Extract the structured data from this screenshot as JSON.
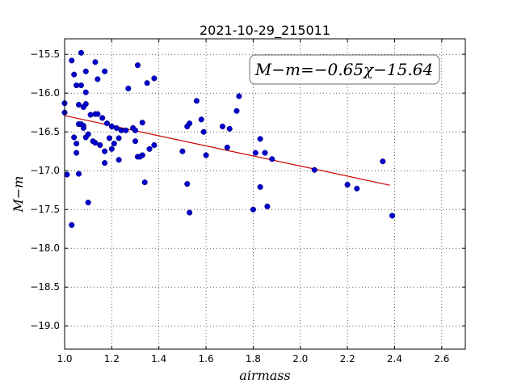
{
  "chart_data": {
    "type": "scatter",
    "title": "2021-10-29_215011",
    "xlabel": "airmass",
    "ylabel": "M−m",
    "xlim": [
      1.0,
      2.7
    ],
    "ylim": [
      -19.3,
      -15.3
    ],
    "invert_y": true,
    "grid": true,
    "grid_style": "dotted",
    "x_ticks": [
      1.0,
      1.2,
      1.4,
      1.6,
      1.8,
      2.0,
      2.2,
      2.4,
      2.6
    ],
    "x_tick_labels": [
      "1.0",
      "1.2",
      "1.4",
      "1.6",
      "1.8",
      "2.0",
      "2.2",
      "2.4",
      "2.6"
    ],
    "y_ticks": [
      -15.5,
      -16.0,
      -16.5,
      -17.0,
      -17.5,
      -18.0,
      -18.5,
      -19.0
    ],
    "y_tick_labels": [
      "−15.5",
      "−16.0",
      "−16.5",
      "−17.0",
      "−17.5",
      "−18.0",
      "−18.5",
      "−19.0"
    ],
    "annotation": "M−m=−0.65χ−15.64",
    "annotation_placement": "top-right",
    "point_color": "#0000cc",
    "line_color": "#cc0000",
    "fit": {
      "slope": -0.65,
      "intercept": -15.64,
      "x_range": [
        1.0,
        2.38
      ]
    },
    "points": [
      [
        1.0,
        -16.13
      ],
      [
        1.0,
        -16.25
      ],
      [
        1.01,
        -17.05
      ],
      [
        1.03,
        -17.7
      ],
      [
        1.03,
        -15.58
      ],
      [
        1.04,
        -15.76
      ],
      [
        1.04,
        -16.57
      ],
      [
        1.05,
        -16.65
      ],
      [
        1.05,
        -15.9
      ],
      [
        1.05,
        -16.77
      ],
      [
        1.06,
        -16.4
      ],
      [
        1.06,
        -16.15
      ],
      [
        1.06,
        -17.04
      ],
      [
        1.07,
        -15.48
      ],
      [
        1.07,
        -15.9
      ],
      [
        1.07,
        -16.4
      ],
      [
        1.08,
        -16.42
      ],
      [
        1.08,
        -16.45
      ],
      [
        1.08,
        -16.18
      ],
      [
        1.09,
        -15.72
      ],
      [
        1.09,
        -15.99
      ],
      [
        1.09,
        -16.57
      ],
      [
        1.09,
        -16.14
      ],
      [
        1.1,
        -17.41
      ],
      [
        1.1,
        -16.53
      ],
      [
        1.11,
        -16.28
      ],
      [
        1.12,
        -16.62
      ],
      [
        1.13,
        -15.6
      ],
      [
        1.13,
        -16.27
      ],
      [
        1.13,
        -16.64
      ],
      [
        1.14,
        -16.27
      ],
      [
        1.14,
        -15.82
      ],
      [
        1.15,
        -16.67
      ],
      [
        1.16,
        -16.32
      ],
      [
        1.17,
        -16.75
      ],
      [
        1.17,
        -15.72
      ],
      [
        1.17,
        -16.9
      ],
      [
        1.18,
        -16.39
      ],
      [
        1.19,
        -16.58
      ],
      [
        1.2,
        -16.72
      ],
      [
        1.2,
        -16.43
      ],
      [
        1.21,
        -16.65
      ],
      [
        1.22,
        -16.45
      ],
      [
        1.23,
        -16.86
      ],
      [
        1.23,
        -16.58
      ],
      [
        1.24,
        -16.48
      ],
      [
        1.26,
        -16.48
      ],
      [
        1.27,
        -15.94
      ],
      [
        1.29,
        -16.45
      ],
      [
        1.3,
        -16.62
      ],
      [
        1.3,
        -16.48
      ],
      [
        1.31,
        -15.64
      ],
      [
        1.31,
        -16.82
      ],
      [
        1.32,
        -16.82
      ],
      [
        1.33,
        -16.8
      ],
      [
        1.33,
        -16.38
      ],
      [
        1.34,
        -17.15
      ],
      [
        1.35,
        -15.87
      ],
      [
        1.36,
        -16.72
      ],
      [
        1.38,
        -15.81
      ],
      [
        1.38,
        -16.67
      ],
      [
        1.5,
        -16.75
      ],
      [
        1.52,
        -16.43
      ],
      [
        1.52,
        -17.17
      ],
      [
        1.53,
        -17.54
      ],
      [
        1.53,
        -16.39
      ],
      [
        1.56,
        -16.1
      ],
      [
        1.58,
        -16.34
      ],
      [
        1.59,
        -16.5
      ],
      [
        1.6,
        -16.8
      ],
      [
        1.67,
        -16.43
      ],
      [
        1.69,
        -16.7
      ],
      [
        1.7,
        -16.46
      ],
      [
        1.73,
        -16.23
      ],
      [
        1.74,
        -16.04
      ],
      [
        1.8,
        -17.5
      ],
      [
        1.81,
        -16.77
      ],
      [
        1.83,
        -16.59
      ],
      [
        1.83,
        -17.21
      ],
      [
        1.85,
        -16.77
      ],
      [
        1.86,
        -17.46
      ],
      [
        1.88,
        -16.85
      ],
      [
        2.06,
        -16.99
      ],
      [
        2.2,
        -17.18
      ],
      [
        2.24,
        -17.23
      ],
      [
        2.35,
        -16.88
      ],
      [
        2.39,
        -17.58
      ]
    ]
  }
}
